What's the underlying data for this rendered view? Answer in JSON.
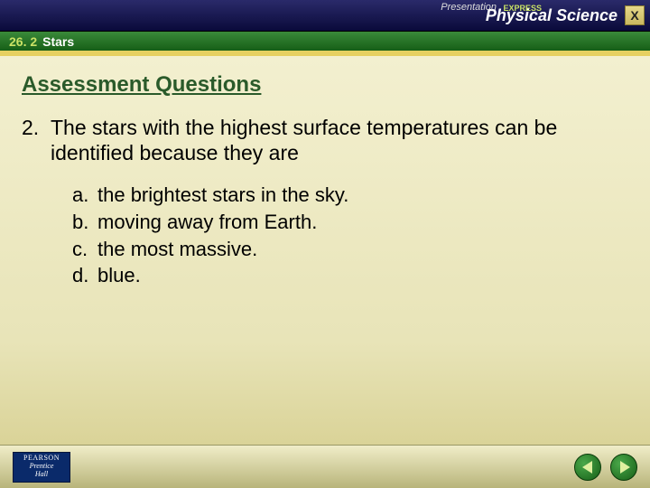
{
  "banner": {
    "presentation_label": "Presentation",
    "express_label": "EXPRESS",
    "subject_label": "Physical Science",
    "close_label": "X"
  },
  "section": {
    "number": "26. 2",
    "title": "Stars"
  },
  "heading": "Assessment Questions",
  "question": {
    "number": "2.",
    "text": "The stars with the highest surface temperatures can be identified because they are",
    "options": [
      {
        "letter": "a.",
        "text": "the brightest stars in the sky."
      },
      {
        "letter": "b.",
        "text": "moving away from Earth."
      },
      {
        "letter": "c.",
        "text": "the most massive."
      },
      {
        "letter": "d.",
        "text": "blue."
      }
    ]
  },
  "footer": {
    "logo_line1": "PEARSON",
    "logo_line2": "Prentice",
    "logo_line3": "Hall"
  },
  "colors": {
    "banner_bg_top": "#2a2a6a",
    "banner_bg_bottom": "#0a0a3a",
    "section_bg_top": "#3a8a3a",
    "section_bg_bottom": "#165e16",
    "accent_yellow": "#e6d060",
    "heading_color": "#2a5a2a",
    "body_bg_top": "#f5f2d4",
    "body_bg_bottom": "#d4cc8a",
    "nav_btn_color": "#165e16"
  }
}
